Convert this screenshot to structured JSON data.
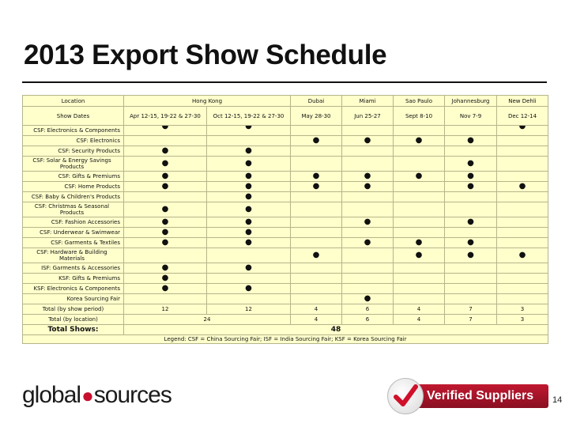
{
  "title": "2013 Export Show Schedule",
  "table": {
    "header": {
      "location_label": "Location",
      "locations": [
        "Hong Kong",
        "Dubai",
        "Miami",
        "Sao Paulo",
        "Johannesburg",
        "New Dehli"
      ],
      "dates_label": "Show Dates",
      "dates": [
        "Apr 12-15, 19-22 & 27-30",
        "Oct 12-15, 19-22 & 27-30",
        "May 28-30",
        "Jun 25-27",
        "Sept 8-10",
        "Nov 7-9",
        "Dec 12-14"
      ]
    },
    "dot_glyph": "●",
    "rows": [
      {
        "label": "CSF: Electronics & Components",
        "marks": [
          1,
          1,
          0,
          0,
          0,
          0,
          1
        ]
      },
      {
        "label": "CSF: Electronics",
        "marks": [
          0,
          0,
          1,
          1,
          1,
          1,
          0
        ]
      },
      {
        "label": "CSF: Security Products",
        "marks": [
          1,
          1,
          0,
          0,
          0,
          0,
          0
        ]
      },
      {
        "label": "CSF: Solar & Energy Savings Products",
        "marks": [
          1,
          1,
          0,
          0,
          0,
          1,
          0
        ]
      },
      {
        "label": "CSF: Gifts & Premiums",
        "marks": [
          1,
          1,
          1,
          1,
          1,
          1,
          0
        ]
      },
      {
        "label": "CSF: Home Products",
        "marks": [
          1,
          1,
          1,
          1,
          0,
          1,
          1
        ]
      },
      {
        "label": "CSF: Baby & Children's Products",
        "marks": [
          0,
          1,
          0,
          0,
          0,
          0,
          0
        ]
      },
      {
        "label": "CSF: Christmas & Seasonal Products",
        "marks": [
          1,
          1,
          0,
          0,
          0,
          0,
          0
        ]
      },
      {
        "label": "CSF: Fashion Accessories",
        "marks": [
          1,
          1,
          0,
          1,
          0,
          1,
          0
        ]
      },
      {
        "label": "CSF: Underwear & Swimwear",
        "marks": [
          1,
          1,
          0,
          0,
          0,
          0,
          0
        ]
      },
      {
        "label": "CSF: Garments & Textiles",
        "marks": [
          1,
          1,
          0,
          1,
          1,
          1,
          0
        ]
      },
      {
        "label": "CSF: Hardware & Building Materials",
        "marks": [
          0,
          0,
          1,
          0,
          1,
          1,
          1
        ]
      },
      {
        "label": "ISF: Garments & Accessories",
        "marks": [
          1,
          1,
          0,
          0,
          0,
          0,
          0
        ]
      },
      {
        "label": "KSF: Gifts & Premiums",
        "marks": [
          1,
          0,
          0,
          0,
          0,
          0,
          0
        ]
      },
      {
        "label": "KSF: Electronics & Components",
        "marks": [
          1,
          1,
          0,
          0,
          0,
          0,
          0
        ]
      },
      {
        "label": "Korea Sourcing Fair",
        "marks": [
          0,
          0,
          0,
          1,
          0,
          0,
          0
        ]
      }
    ],
    "totals_period": {
      "label": "Total (by show period)",
      "values": [
        "12",
        "12",
        "4",
        "6",
        "4",
        "7",
        "3"
      ]
    },
    "totals_location": {
      "label": "Total (by location)",
      "hk": "24",
      "values": [
        "4",
        "6",
        "4",
        "7",
        "3"
      ]
    },
    "total_shows": {
      "label": "Total Shows:",
      "value": "48"
    },
    "legend": "Legend: CSF = China Sourcing Fair; ISF = India Sourcing Fair; KSF = Korea Sourcing Fair"
  },
  "footer": {
    "logo_left": "global",
    "logo_dot": "●",
    "logo_right": "sources",
    "badge_text": "Verified Suppliers",
    "page_number": "14"
  },
  "colors": {
    "table_bg": "#ffffcc",
    "badge_red": "#c01830",
    "check_red": "#d0102a"
  }
}
